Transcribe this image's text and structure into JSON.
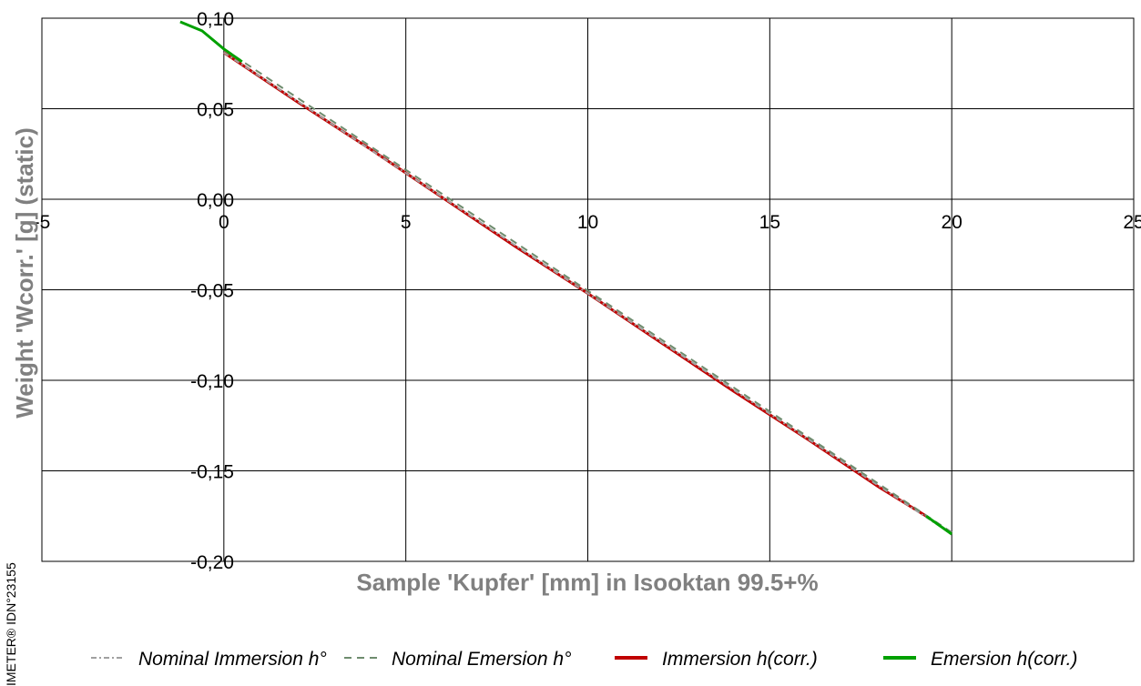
{
  "chart_data": {
    "type": "line",
    "title": "",
    "xlabel": "Sample 'Kupfer' [mm] in Isooktan 99.5+%",
    "ylabel": "Weight 'Wcorr.' [g]  (static)",
    "xlim": [
      -5,
      25
    ],
    "ylim": [
      -0.2,
      0.1
    ],
    "x_ticks": [
      "-5",
      "0",
      "5",
      "10",
      "15",
      "20",
      "25"
    ],
    "y_ticks": [
      "0,10",
      "0,05",
      "0,00",
      "-0,05",
      "-0,10",
      "-0,15",
      "-0,20"
    ],
    "grid": true,
    "legend_position": "bottom",
    "series": [
      {
        "name": "Nominal Immersion h°",
        "color": "#a0a0a0",
        "style": "dash-dot",
        "x": [
          0,
          20
        ],
        "y": [
          0.081,
          -0.185
        ]
      },
      {
        "name": "Nominal Emersion h°",
        "color": "#6e8c6e",
        "style": "dashed",
        "x": [
          0,
          20
        ],
        "y": [
          0.083,
          -0.184
        ]
      },
      {
        "name": "Immersion h(corr.)",
        "color": "#c00000",
        "style": "solid",
        "x": [
          0,
          2,
          4,
          6,
          8,
          10,
          12,
          14,
          16,
          18,
          19.3
        ],
        "y": [
          0.081,
          0.054,
          0.028,
          0.001,
          -0.026,
          -0.052,
          -0.079,
          -0.106,
          -0.132,
          -0.159,
          -0.175
        ]
      },
      {
        "name": "Emersion h(corr.)",
        "color": "#00a000",
        "style": "solid",
        "x": [
          -1.2,
          -0.6,
          0,
          0.5
        ],
        "y": [
          0.098,
          0.093,
          0.083,
          0.076
        ],
        "x2": [
          19.3,
          20
        ],
        "y2": [
          -0.175,
          -0.185
        ]
      }
    ]
  },
  "side_note": "IMETER® IDN°23155",
  "legend": [
    {
      "label": "Nominal Immersion h°",
      "color": "#a0a0a0",
      "style": "dash-dot"
    },
    {
      "label": "Nominal Emersion h°",
      "color": "#6e8c6e",
      "style": "dashed"
    },
    {
      "label": "Immersion h(corr.)",
      "color": "#c00000",
      "style": "solid"
    },
    {
      "label": "Emersion h(corr.)",
      "color": "#00a000",
      "style": "solid"
    }
  ]
}
